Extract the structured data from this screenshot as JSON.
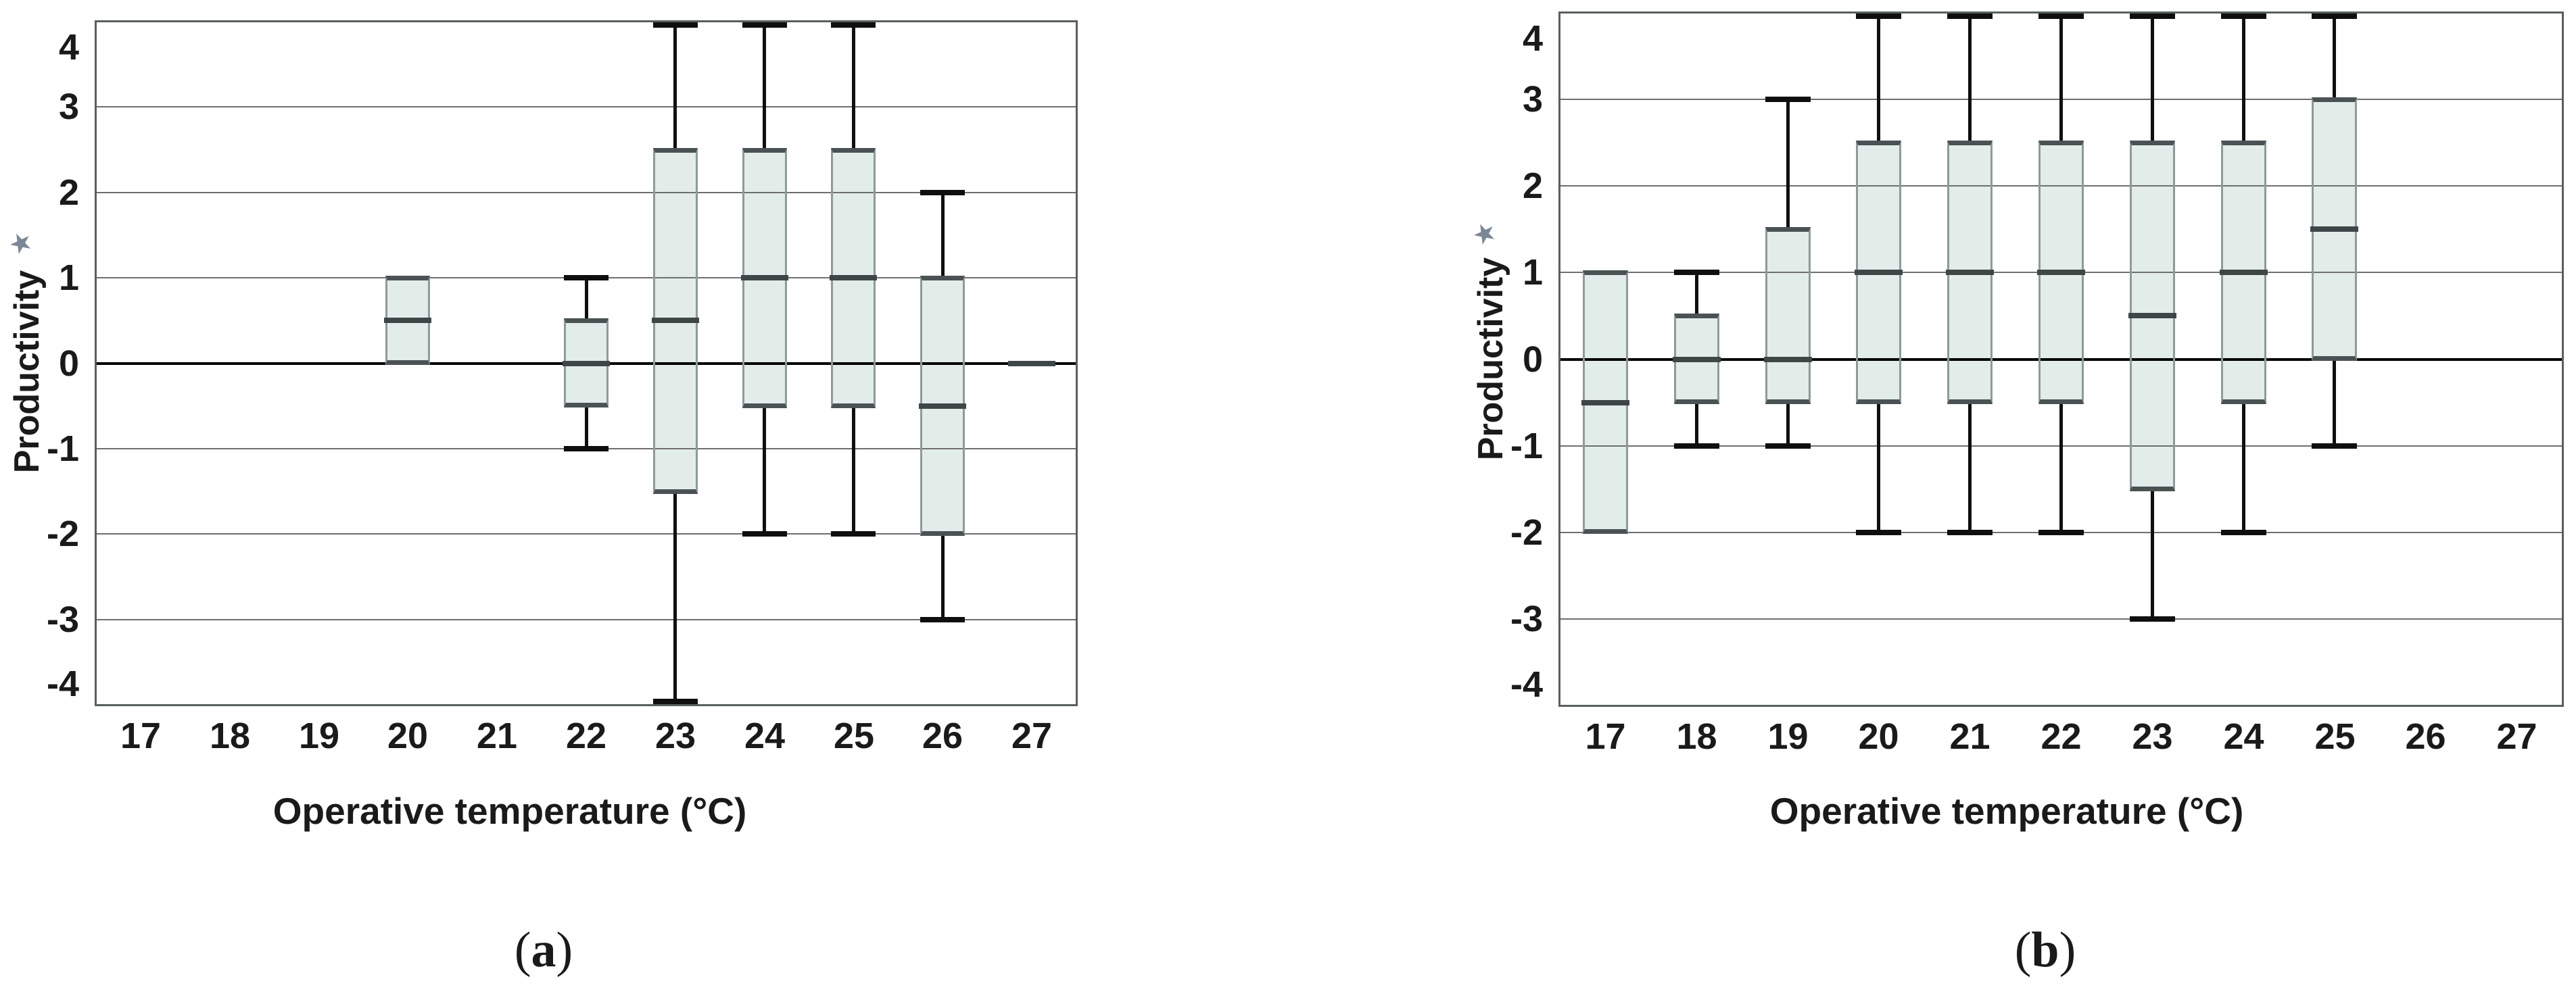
{
  "colors": {
    "box_fill": "#e2ede9",
    "box_side_border": "#8f999b",
    "box_quartile_edge": "#4b5254",
    "median": "#3f4648",
    "whisker": "#0f0f0f",
    "gridline": "#6f6f6f",
    "zero_line": "#000000",
    "frame": "#585f61",
    "text": "#1a1a1a",
    "marker": "#7b8696"
  },
  "panels": [
    {
      "label_open": "(",
      "label_letter": "a",
      "label_close": ")"
    },
    {
      "label_open": "(",
      "label_letter": "b",
      "label_close": ")"
    }
  ],
  "chart_data": [
    {
      "type": "boxplot",
      "panel": "a",
      "xlabel": "Operative temperature (°C)",
      "ylabel": "Productivity",
      "ylabel_marker": "★",
      "x_categories": [
        "17",
        "18",
        "19",
        "20",
        "21",
        "22",
        "23",
        "24",
        "25",
        "26",
        "27"
      ],
      "yticks": [
        "4",
        "3",
        "2",
        "1",
        "0",
        "-1",
        "-2",
        "-3",
        "-4"
      ],
      "ylim": [
        -4,
        4
      ],
      "grid": "horizontal",
      "zero_line": true,
      "boxes": [
        {
          "x": "20",
          "q1": 0,
          "median": 0.5,
          "q3": 1,
          "lo": null,
          "hi": null
        },
        {
          "x": "22",
          "q1": -0.5,
          "median": 0,
          "q3": 0.5,
          "lo": -1,
          "hi": 1
        },
        {
          "x": "23",
          "q1": -1.5,
          "median": 0.5,
          "q3": 2.5,
          "lo": -4,
          "hi": 4
        },
        {
          "x": "24",
          "q1": -0.5,
          "median": 1,
          "q3": 2.5,
          "lo": -2,
          "hi": 4
        },
        {
          "x": "25",
          "q1": -0.5,
          "median": 1,
          "q3": 2.5,
          "lo": -2,
          "hi": 4
        },
        {
          "x": "26",
          "q1": -2,
          "median": -0.5,
          "q3": 1,
          "lo": -3,
          "hi": 2
        },
        {
          "x": "27",
          "q1": null,
          "median": 0,
          "q3": null,
          "lo": null,
          "hi": null
        }
      ]
    },
    {
      "type": "boxplot",
      "panel": "b",
      "xlabel": "Operative temperature (°C)",
      "ylabel": "Productivity",
      "ylabel_marker": "★",
      "x_categories": [
        "17",
        "18",
        "19",
        "20",
        "21",
        "22",
        "23",
        "24",
        "25",
        "26",
        "27"
      ],
      "yticks": [
        "4",
        "3",
        "2",
        "1",
        "0",
        "-1",
        "-2",
        "-3",
        "-4"
      ],
      "ylim": [
        -4,
        4
      ],
      "grid": "horizontal",
      "zero_line": true,
      "boxes": [
        {
          "x": "17",
          "q1": -2,
          "median": -0.5,
          "q3": 1,
          "lo": null,
          "hi": null
        },
        {
          "x": "18",
          "q1": -0.5,
          "median": 0,
          "q3": 0.5,
          "lo": -1,
          "hi": 1
        },
        {
          "x": "19",
          "q1": -0.5,
          "median": 0,
          "q3": 1.5,
          "lo": -1,
          "hi": 3
        },
        {
          "x": "20",
          "q1": -0.5,
          "median": 1,
          "q3": 2.5,
          "lo": -2,
          "hi": 4
        },
        {
          "x": "21",
          "q1": -0.5,
          "median": 1,
          "q3": 2.5,
          "lo": -2,
          "hi": 4
        },
        {
          "x": "22",
          "q1": -0.5,
          "median": 1,
          "q3": 2.5,
          "lo": -2,
          "hi": 4
        },
        {
          "x": "23",
          "q1": -1.5,
          "median": 0.5,
          "q3": 2.5,
          "lo": -3,
          "hi": 4
        },
        {
          "x": "24",
          "q1": -0.5,
          "median": 1,
          "q3": 2.5,
          "lo": -2,
          "hi": 4
        },
        {
          "x": "25",
          "q1": 0,
          "median": 1.5,
          "q3": 3,
          "lo": -1,
          "hi": 4
        }
      ]
    }
  ]
}
